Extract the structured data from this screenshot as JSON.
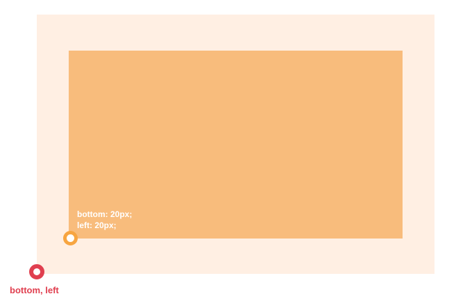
{
  "inner_box": {
    "label_line1": "bottom: 20px;",
    "label_line2": "left: 20px;"
  },
  "outer_corner": {
    "label": "bottom, left"
  },
  "colors": {
    "container_bg": "#ffefe3",
    "inner_bg": "#f8bc7c",
    "inner_marker": "#f7a541",
    "outer_marker": "#e03f4f"
  }
}
